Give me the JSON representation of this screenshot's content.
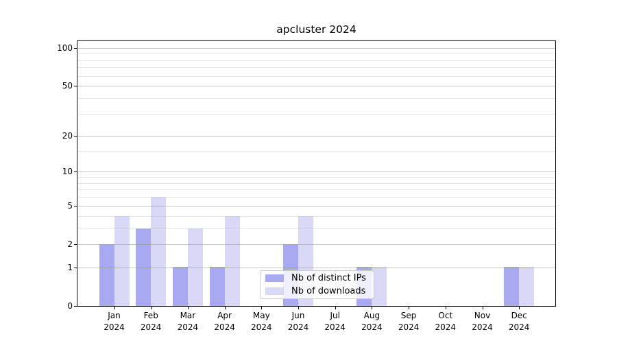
{
  "figure": {
    "title": "apcluster 2024"
  },
  "chart_data": {
    "type": "bar",
    "title": "apcluster 2024",
    "categories": [
      "Jan 2024",
      "Feb 2024",
      "Mar 2024",
      "Apr 2024",
      "May 2024",
      "Jun 2024",
      "Jul 2024",
      "Aug 2024",
      "Sep 2024",
      "Oct 2024",
      "Nov 2024",
      "Dec 2024"
    ],
    "series": [
      {
        "name": "Nb of distinct IPs",
        "color": "#a9a9f1",
        "values": [
          2,
          3,
          1,
          1,
          0,
          2,
          0,
          1,
          0,
          0,
          0,
          1
        ]
      },
      {
        "name": "Nb of downloads",
        "color": "#d9d9f7",
        "values": [
          4,
          6,
          3,
          4,
          0,
          4,
          0,
          1,
          0,
          0,
          0,
          1
        ]
      }
    ],
    "xlabel": "",
    "ylabel": "",
    "yscale": "log10(value+1)",
    "yticks": [
      0,
      1,
      2,
      5,
      10,
      20,
      50,
      100
    ],
    "minor_gridline_values": [
      3,
      4,
      6,
      7,
      8,
      9,
      15,
      30,
      40,
      60,
      70,
      80,
      90
    ],
    "ylim": [
      0,
      112
    ],
    "grid": true,
    "grid_above_bars": true,
    "legend_position": "lower center"
  },
  "colors": {
    "major_grid": "#c6c6c6",
    "minor_grid": "#e9e9e9",
    "spine": "#000000",
    "background": "#ffffff",
    "legend_border": "#cccccc",
    "bar_distinct_ips": "#a9a9f1",
    "bar_downloads": "#d9d9f7"
  }
}
